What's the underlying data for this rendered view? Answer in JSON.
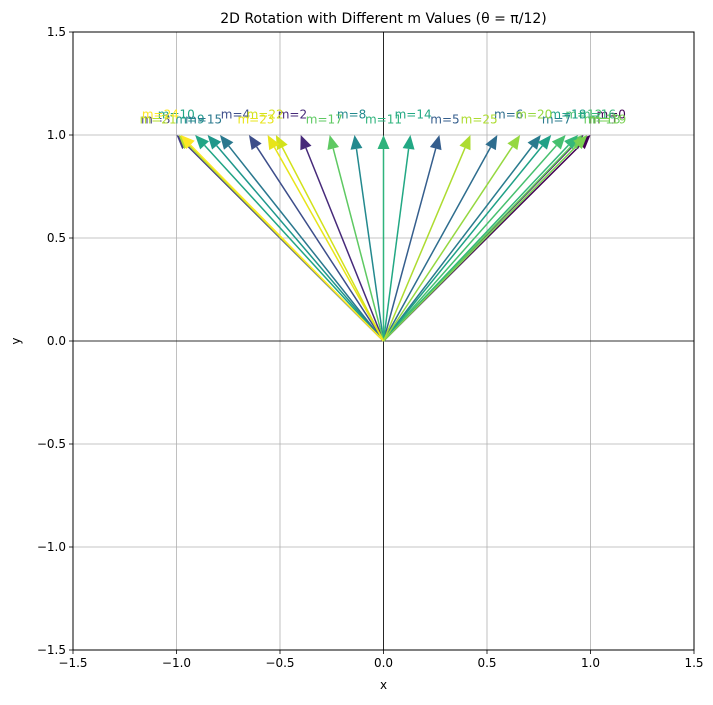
{
  "chart_data": {
    "type": "quiver",
    "title": "2D Rotation with Different m Values (θ = π/12)",
    "xlabel": "x",
    "ylabel": "y",
    "xlim": [
      -1.5,
      1.5
    ],
    "ylim": [
      -1.5,
      1.5
    ],
    "xticks": [
      -1.5,
      -1.0,
      -0.5,
      0.0,
      0.5,
      1.0,
      1.5
    ],
    "yticks": [
      -1.5,
      -1.0,
      -0.5,
      0.0,
      0.5,
      1.0,
      1.5
    ],
    "xtick_labels": [
      "−1.5",
      "−1.0",
      "−0.5",
      "0.0",
      "0.5",
      "1.0",
      "1.5"
    ],
    "ytick_labels": [
      "−1.5",
      "−1.0",
      "−0.5",
      "0.0",
      "0.5",
      "1.0",
      "1.5"
    ],
    "grid": true,
    "origin": [
      0,
      0
    ],
    "vectors": [
      {
        "label": "m=0",
        "x": 1.0,
        "y": 1.0,
        "color": "#440154"
      },
      {
        "label": "m=1",
        "x": 0.966,
        "y": 1.0,
        "color": "#481769"
      },
      {
        "label": "m=2",
        "x": -0.4,
        "y": 1.0,
        "color": "#472a7a"
      },
      {
        "label": "m=3",
        "x": -1.0,
        "y": 1.0,
        "color": "#433d84"
      },
      {
        "label": "m=4",
        "x": -0.65,
        "y": 1.0,
        "color": "#3d4e8a"
      },
      {
        "label": "m=5",
        "x": 0.27,
        "y": 1.0,
        "color": "#355e8d"
      },
      {
        "label": "m=6",
        "x": 0.55,
        "y": 1.0,
        "color": "#2e6d8e"
      },
      {
        "label": "m=7",
        "x": 0.76,
        "y": 1.0,
        "color": "#297b8e"
      },
      {
        "label": "m=8",
        "x": -0.14,
        "y": 1.0,
        "color": "#23898e"
      },
      {
        "label": "m=9",
        "x": -0.85,
        "y": 1.0,
        "color": "#1f978b"
      },
      {
        "label": "m=10",
        "x": -0.91,
        "y": 1.0,
        "color": "#21a585"
      },
      {
        "label": "m=11",
        "x": 0.0,
        "y": 1.0,
        "color": "#2eb37c"
      },
      {
        "label": "m=12",
        "x": 0.88,
        "y": 1.0,
        "color": "#46c06f"
      },
      {
        "label": "m=13",
        "x": 0.96,
        "y": 1.0,
        "color": "#65cb5e"
      },
      {
        "label": "m=14",
        "x": 0.13,
        "y": 1.0,
        "color": "#22a884"
      },
      {
        "label": "m=15",
        "x": -0.79,
        "y": 1.0,
        "color": "#2a788e"
      },
      {
        "label": "m=16",
        "x": 0.94,
        "y": 1.0,
        "color": "#35b779"
      },
      {
        "label": "m=17",
        "x": -0.26,
        "y": 1.0,
        "color": "#5ec962"
      },
      {
        "label": "m=18",
        "x": 0.81,
        "y": 1.0,
        "color": "#1fa187"
      },
      {
        "label": "m=19",
        "x": 0.985,
        "y": 1.0,
        "color": "#7ad151"
      },
      {
        "label": "m=20",
        "x": 0.66,
        "y": 1.0,
        "color": "#95d840"
      },
      {
        "label": "m=21",
        "x": -0.99,
        "y": 1.0,
        "color": "#b5de2b"
      },
      {
        "label": "m=22",
        "x": -0.52,
        "y": 1.0,
        "color": "#d2e21b"
      },
      {
        "label": "m=23",
        "x": -0.56,
        "y": 1.0,
        "color": "#e8e419"
      },
      {
        "label": "m=24",
        "x": -0.98,
        "y": 1.0,
        "color": "#fde725"
      },
      {
        "label": "m=25",
        "x": 0.42,
        "y": 1.0,
        "color": "#addc30"
      }
    ]
  }
}
